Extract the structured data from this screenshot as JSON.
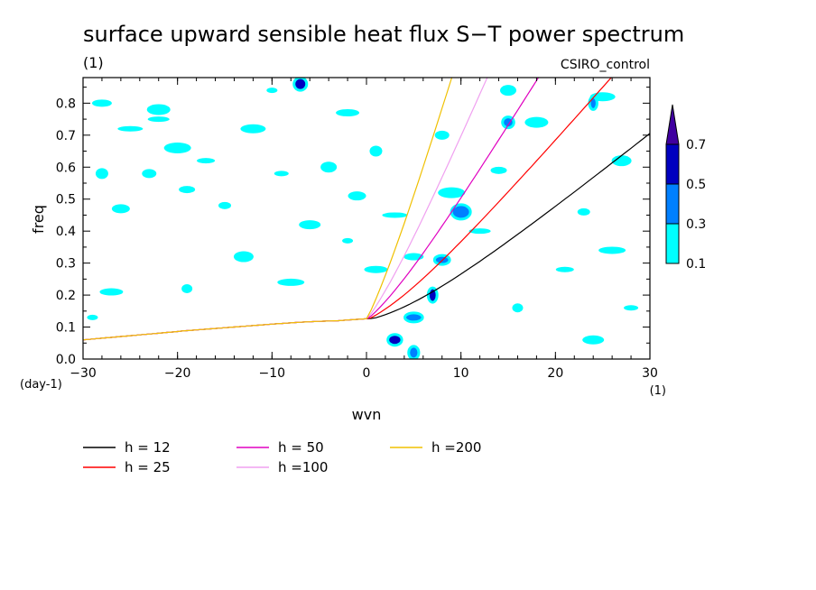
{
  "chart_data": {
    "type": "heatmap",
    "title": "surface upward sensible heat flux S−T power spectrum",
    "units_label": "(1)",
    "model": "CSIRO_control",
    "xlabel": "wvn",
    "ylabel": "freq",
    "x_unit": "(1)",
    "y_unit": "(day-1)",
    "xlim": [
      -30,
      30
    ],
    "ylim": [
      0,
      0.88
    ],
    "x_ticks": [
      -30,
      -20,
      -10,
      0,
      10,
      20,
      30
    ],
    "x_tick_labels": [
      "−30",
      "−20",
      "−10",
      "0",
      "10",
      "20",
      "30"
    ],
    "y_ticks": [
      0.0,
      0.1,
      0.2,
      0.3,
      0.4,
      0.5,
      0.6,
      0.7,
      0.8
    ],
    "y_tick_labels": [
      "0.0",
      "0.1",
      "0.2",
      "0.3",
      "0.4",
      "0.5",
      "0.6",
      "0.7",
      "0.8"
    ],
    "colorbar": {
      "levels": [
        "0.1",
        "0.3",
        "0.5",
        "0.7"
      ],
      "colors": [
        "#00ffff",
        "#0080ff",
        "#0000c0",
        "#4000a0"
      ]
    },
    "dispersion_curves": [
      {
        "label": "h = 12",
        "h": 12,
        "color": "#000000"
      },
      {
        "label": "h = 25",
        "h": 25,
        "color": "#ff0000"
      },
      {
        "label": "h = 50",
        "h": 50,
        "color": "#e000c0"
      },
      {
        "label": "h =100",
        "h": 100,
        "color": "#f0a0f0"
      },
      {
        "label": "h =200",
        "h": 200,
        "color": "#f0c000"
      }
    ],
    "blobs": [
      {
        "x": -29,
        "y": 0.13,
        "level": 0
      },
      {
        "x": -27,
        "y": 0.21,
        "level": 0
      },
      {
        "x": -26,
        "y": 0.47,
        "level": 0
      },
      {
        "x": -28,
        "y": 0.58,
        "level": 0
      },
      {
        "x": -25,
        "y": 0.72,
        "level": 0
      },
      {
        "x": -28,
        "y": 0.8,
        "level": 0
      },
      {
        "x": -23,
        "y": 0.58,
        "level": 0
      },
      {
        "x": -20,
        "y": 0.66,
        "level": 0
      },
      {
        "x": -22,
        "y": 0.75,
        "level": 0
      },
      {
        "x": -19,
        "y": 0.53,
        "level": 0
      },
      {
        "x": -19,
        "y": 0.22,
        "level": 0
      },
      {
        "x": -22,
        "y": 0.78,
        "level": 0
      },
      {
        "x": -17,
        "y": 0.62,
        "level": 0
      },
      {
        "x": -15,
        "y": 0.48,
        "level": 0
      },
      {
        "x": -12,
        "y": 0.72,
        "level": 0
      },
      {
        "x": -13,
        "y": 0.32,
        "level": 0
      },
      {
        "x": -9,
        "y": 0.58,
        "level": 0
      },
      {
        "x": -8,
        "y": 0.24,
        "level": 0
      },
      {
        "x": -6,
        "y": 0.42,
        "level": 0
      },
      {
        "x": -4,
        "y": 0.6,
        "level": 0
      },
      {
        "x": -2,
        "y": 0.37,
        "level": 0
      },
      {
        "x": -2,
        "y": 0.77,
        "level": 0
      },
      {
        "x": -1,
        "y": 0.51,
        "level": 0
      },
      {
        "x": 1,
        "y": 0.65,
        "level": 0
      },
      {
        "x": 3,
        "y": 0.45,
        "level": 0
      },
      {
        "x": 5,
        "y": 0.32,
        "level": 0
      },
      {
        "x": 8,
        "y": 0.7,
        "level": 0
      },
      {
        "x": 9,
        "y": 0.52,
        "level": 0
      },
      {
        "x": 12,
        "y": 0.4,
        "level": 0
      },
      {
        "x": 14,
        "y": 0.59,
        "level": 0
      },
      {
        "x": 16,
        "y": 0.16,
        "level": 0
      },
      {
        "x": 18,
        "y": 0.74,
        "level": 0
      },
      {
        "x": 21,
        "y": 0.28,
        "level": 0
      },
      {
        "x": 23,
        "y": 0.46,
        "level": 0
      },
      {
        "x": 25,
        "y": 0.82,
        "level": 0
      },
      {
        "x": 27,
        "y": 0.62,
        "level": 0
      },
      {
        "x": 28,
        "y": 0.16,
        "level": 0
      },
      {
        "x": 26,
        "y": 0.34,
        "level": 0
      },
      {
        "x": 24,
        "y": 0.06,
        "level": 0
      },
      {
        "x": 15,
        "y": 0.84,
        "level": 0
      },
      {
        "x": -10,
        "y": 0.84,
        "level": 0
      },
      {
        "x": 1,
        "y": 0.28,
        "level": 0
      },
      {
        "x": -7,
        "y": 0.86,
        "level": 2
      },
      {
        "x": 7,
        "y": 0.2,
        "level": 2
      },
      {
        "x": 5,
        "y": 0.13,
        "level": 1
      },
      {
        "x": 3,
        "y": 0.06,
        "level": 2
      },
      {
        "x": 5,
        "y": 0.02,
        "level": 1
      },
      {
        "x": 10,
        "y": 0.46,
        "level": 1
      },
      {
        "x": 8,
        "y": 0.31,
        "level": 1
      },
      {
        "x": 15,
        "y": 0.74,
        "level": 1
      },
      {
        "x": 24,
        "y": 0.8,
        "level": 1
      }
    ]
  }
}
